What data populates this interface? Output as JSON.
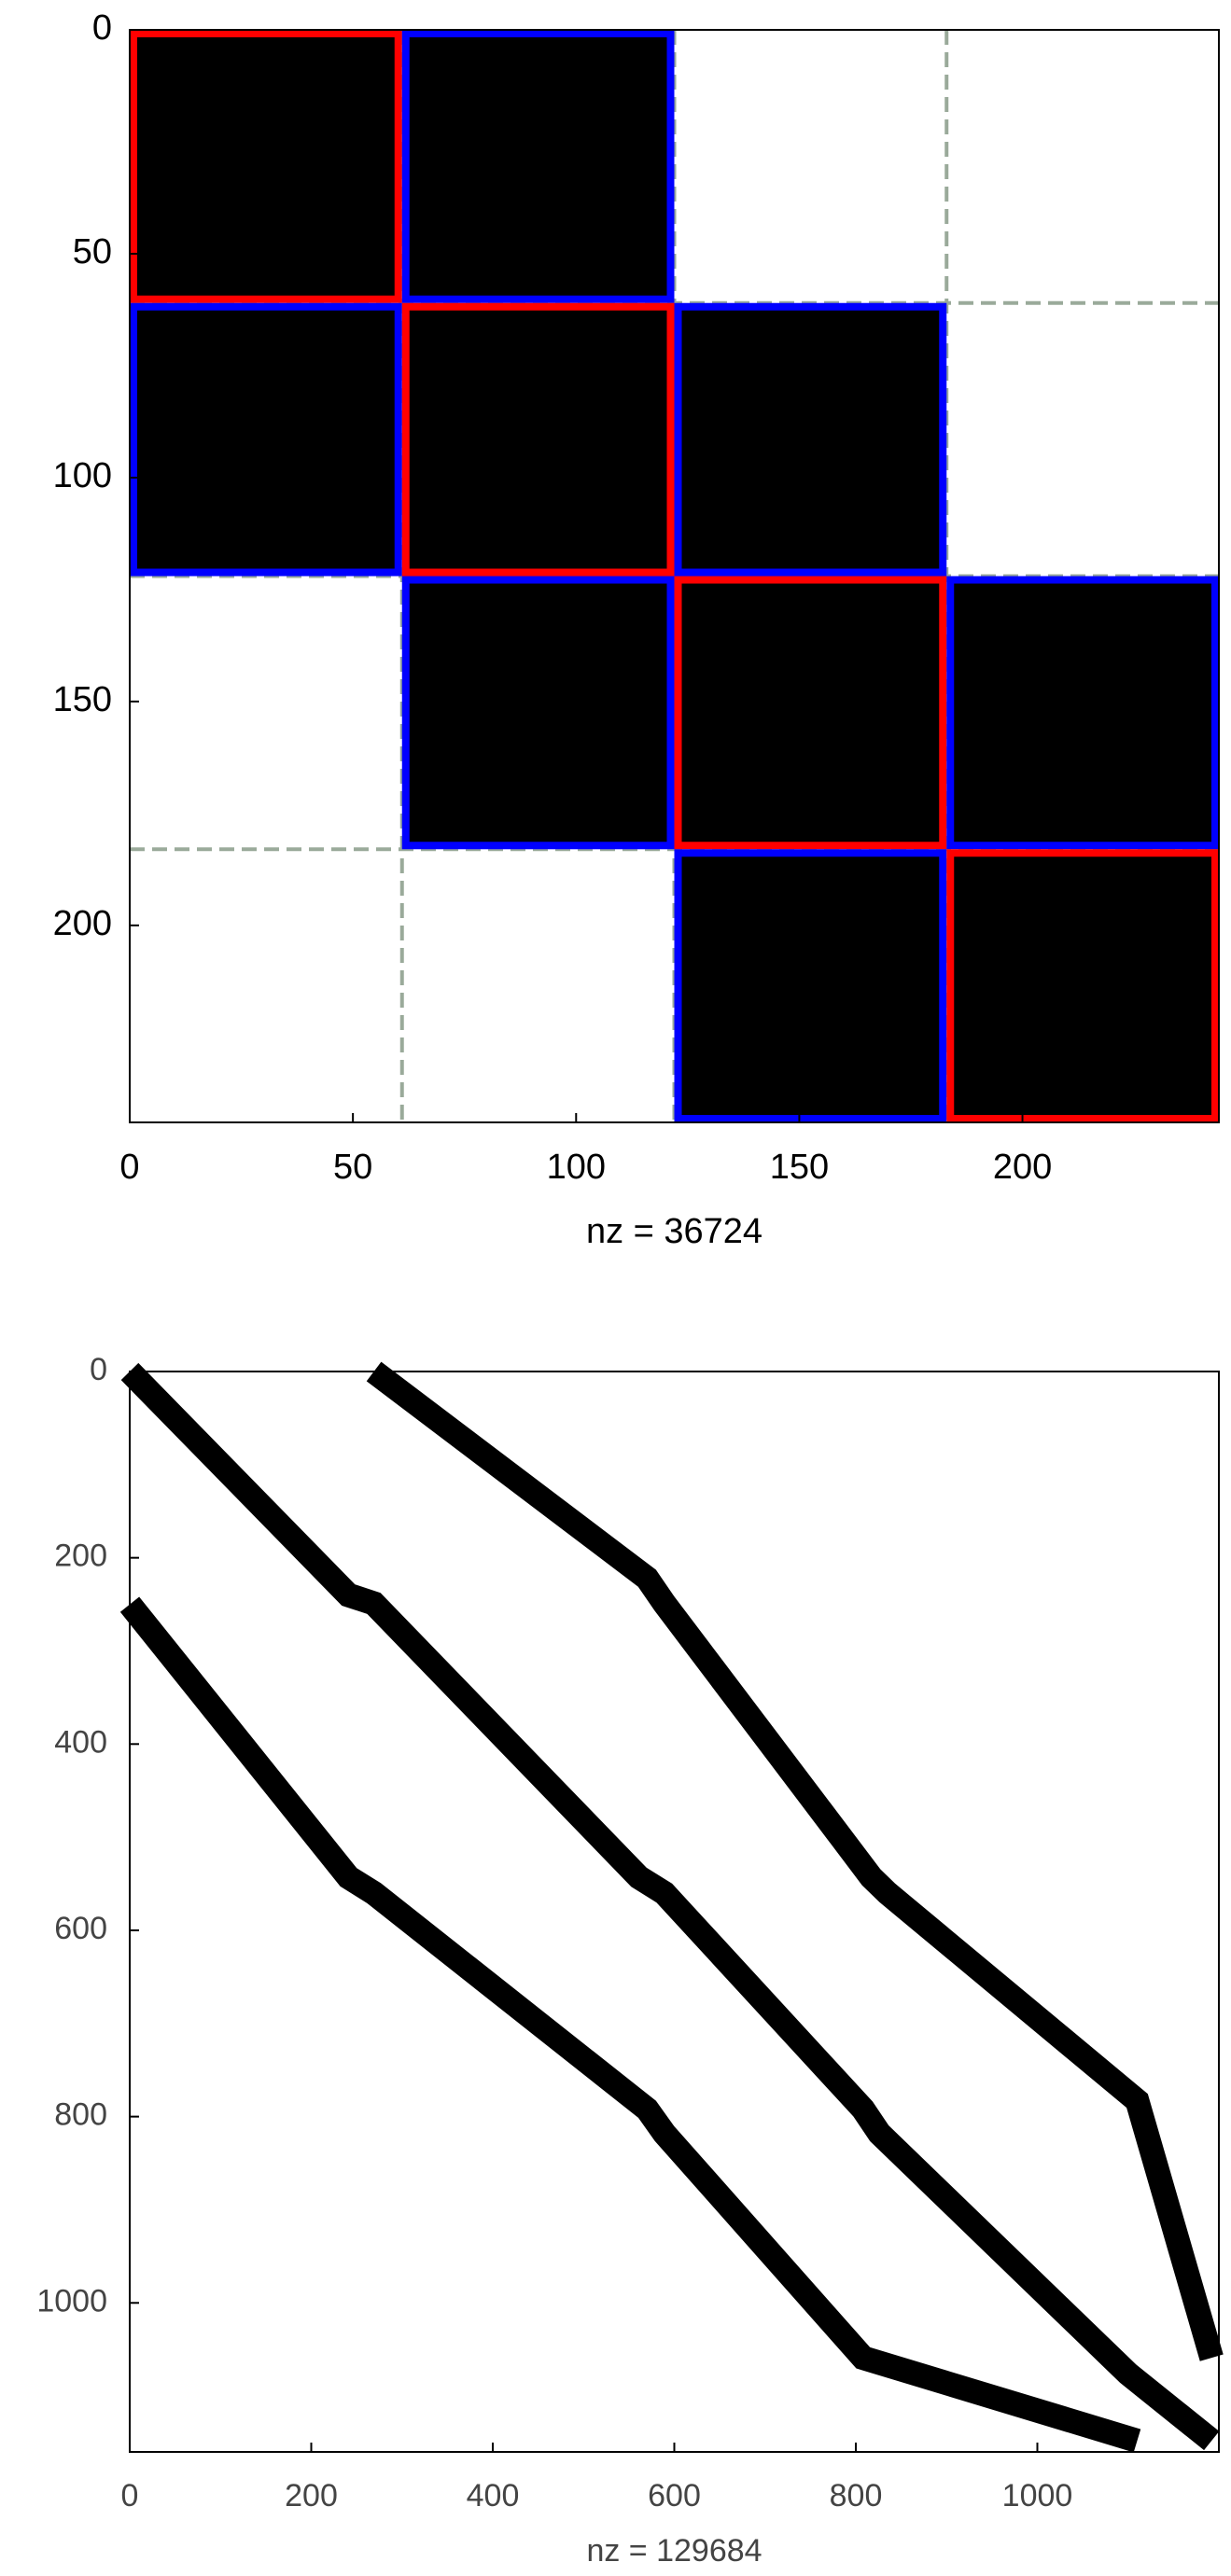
{
  "chart_data": [
    {
      "type": "spy",
      "xlabel": "nz = 36724",
      "xlim": [
        0,
        244
      ],
      "ylim": [
        244,
        0
      ],
      "xticks": [
        0,
        50,
        100,
        150,
        200
      ],
      "yticks": [
        0,
        50,
        100,
        150,
        200
      ],
      "partition_lines": [
        61,
        122,
        183
      ],
      "partition_color": "#9aaa9a",
      "block_fill": "#000000",
      "blocks": [
        {
          "rows": [
            0,
            61
          ],
          "cols": [
            0,
            61
          ],
          "color": "#ff0000"
        },
        {
          "rows": [
            0,
            61
          ],
          "cols": [
            61,
            122
          ],
          "color": "#0000ff"
        },
        {
          "rows": [
            61,
            122
          ],
          "cols": [
            0,
            61
          ],
          "color": "#0000ff"
        },
        {
          "rows": [
            61,
            122
          ],
          "cols": [
            61,
            122
          ],
          "color": "#ff0000"
        },
        {
          "rows": [
            61,
            122
          ],
          "cols": [
            122,
            183
          ],
          "color": "#0000ff"
        },
        {
          "rows": [
            122,
            183
          ],
          "cols": [
            61,
            122
          ],
          "color": "#0000ff"
        },
        {
          "rows": [
            122,
            183
          ],
          "cols": [
            122,
            183
          ],
          "color": "#ff0000"
        },
        {
          "rows": [
            122,
            183
          ],
          "cols": [
            183,
            244
          ],
          "color": "#0000ff"
        },
        {
          "rows": [
            183,
            244
          ],
          "cols": [
            122,
            183
          ],
          "color": "#0000ff"
        },
        {
          "rows": [
            183,
            244
          ],
          "cols": [
            183,
            244
          ],
          "color": "#ff0000"
        }
      ]
    },
    {
      "type": "spy",
      "xlabel": "nz = 129684",
      "xlim": [
        0,
        1200
      ],
      "ylim": [
        1160,
        0
      ],
      "xticks": [
        0,
        200,
        400,
        600,
        800,
        1000
      ],
      "yticks": [
        0,
        200,
        400,
        600,
        800,
        1000
      ],
      "series": [
        {
          "color": "#000000",
          "x": [
            0,
            241,
            269,
            561,
            589,
            808,
            826,
            1100,
            1192
          ],
          "y": [
            0,
            240,
            249,
            543,
            560,
            792,
            818,
            1076,
            1148
          ]
        },
        {
          "color": "#000000",
          "x": [
            269,
            570,
            589,
            817,
            835,
            1110,
            1192
          ],
          "y": [
            0,
            222,
            249,
            543,
            560,
            783,
            1059
          ]
        },
        {
          "color": "#000000",
          "x": [
            0,
            241,
            269,
            570,
            589,
            808,
            1110
          ],
          "y": [
            250,
            543,
            560,
            792,
            818,
            1059,
            1148
          ]
        }
      ]
    }
  ]
}
